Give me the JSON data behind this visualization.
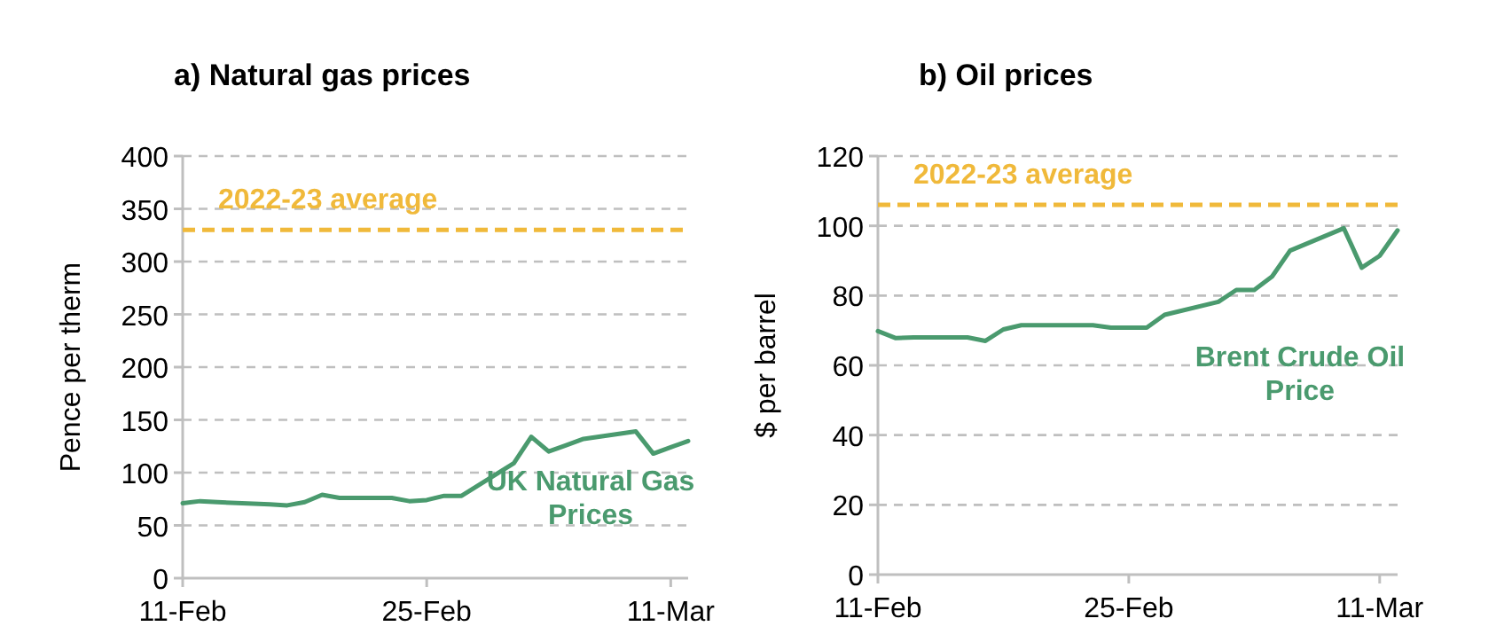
{
  "chart_data": [
    {
      "type": "line",
      "title": "a) Natural gas prices",
      "ylabel": "Pence per therm",
      "x": [
        "--02-11",
        "--02-12",
        "--02-13",
        "--02-16",
        "--02-17",
        "--02-18",
        "--02-19",
        "--02-20",
        "--02-23",
        "--02-24",
        "--02-25",
        "--02-26",
        "--02-27",
        "--03-02",
        "--03-03",
        "--03-04",
        "--03-05",
        "--03-06",
        "--03-09",
        "--03-10",
        "--03-11",
        "--03-12"
      ],
      "series": [
        {
          "name": "UK Natural Gas Prices",
          "color": "#4a9a6e",
          "values": [
            71,
            73,
            72,
            70,
            69,
            72,
            79,
            76,
            76,
            73,
            74,
            78,
            78,
            109,
            134,
            120,
            126,
            132,
            139,
            118,
            124,
            130
          ]
        }
      ],
      "xlim": [
        "--02-11",
        "--03-12"
      ],
      "xticks": [
        {
          "value": "--02-11",
          "label": "11-Feb"
        },
        {
          "value": "--02-25",
          "label": "25-Feb"
        },
        {
          "value": "--03-11",
          "label": "11-Mar"
        }
      ],
      "ylim": [
        0,
        400
      ],
      "yticks": [
        0,
        50,
        100,
        150,
        200,
        250,
        300,
        350,
        400
      ],
      "grid": "y",
      "line_style": "solid",
      "ref_lines": [
        {
          "axis": "y",
          "value": 330,
          "label": "2022-23 average",
          "color": "#f0b93a",
          "line_style": "dashed"
        }
      ]
    },
    {
      "type": "line",
      "title": "b) Oil prices",
      "ylabel": "$ per barrel",
      "x": [
        "--02-11",
        "--02-12",
        "--02-13",
        "--02-16",
        "--02-17",
        "--02-18",
        "--02-19",
        "--02-20",
        "--02-23",
        "--02-24",
        "--02-25",
        "--02-26",
        "--02-27",
        "--03-02",
        "--03-03",
        "--03-04",
        "--03-05",
        "--03-06",
        "--03-09",
        "--03-10",
        "--03-11",
        "--03-12"
      ],
      "series": [
        {
          "name": "Brent Crude Oil Price",
          "color": "#4a9a6e",
          "values": [
            69.8,
            67.8,
            68,
            68,
            67,
            70.3,
            71.5,
            71.5,
            71.5,
            70.8,
            70.8,
            70.8,
            74.5,
            78.2,
            81.6,
            81.6,
            85.5,
            92.9,
            99.3,
            88,
            91.4,
            98.7
          ]
        }
      ],
      "xlim": [
        "--02-11",
        "--03-12"
      ],
      "xticks": [
        {
          "value": "--02-11",
          "label": "11-Feb"
        },
        {
          "value": "--02-25",
          "label": "25-Feb"
        },
        {
          "value": "--03-11",
          "label": "11-Mar"
        }
      ],
      "ylim": [
        0,
        120
      ],
      "yticks": [
        0,
        20,
        40,
        60,
        80,
        100,
        120
      ],
      "grid": "y",
      "line_style": "solid",
      "ref_lines": [
        {
          "axis": "y",
          "value": 106,
          "label": "2022-23 average",
          "color": "#f0b93a",
          "line_style": "dashed"
        }
      ]
    }
  ]
}
